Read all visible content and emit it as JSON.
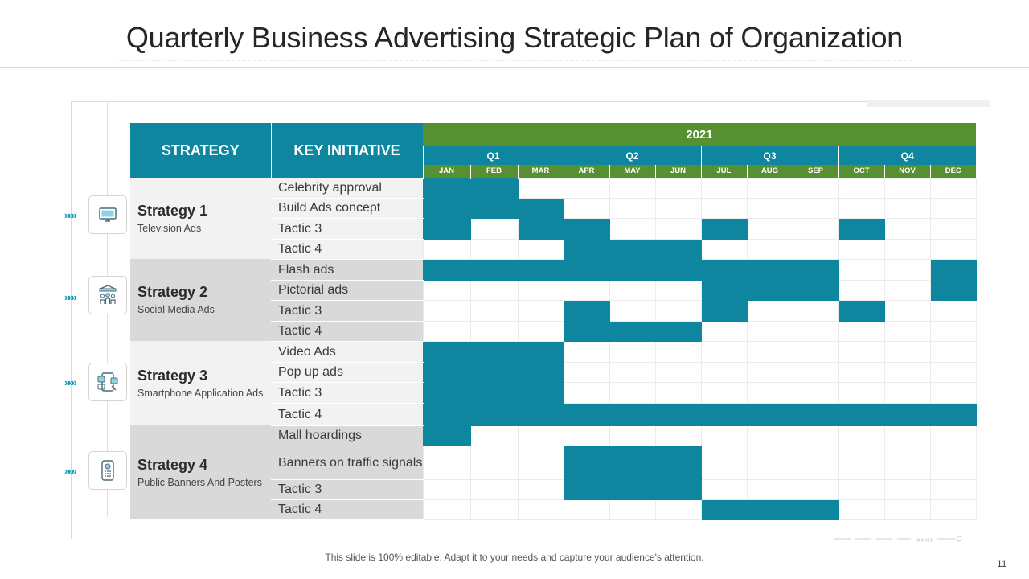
{
  "title": "Quarterly Business Advertising Strategic Plan of Organization",
  "table": {
    "strategy_header": "STRATEGY",
    "initiative_header": "KEY INITIATIVE",
    "year": "2021",
    "quarters": [
      "Q1",
      "Q2",
      "Q3",
      "Q4"
    ],
    "months": [
      "JAN",
      "FEB",
      "MAR",
      "APR",
      "MAY",
      "JUN",
      "JUL",
      "AUG",
      "SEP",
      "OCT",
      "NOV",
      "DEC"
    ]
  },
  "strategies": [
    {
      "name": "Strategy 1",
      "subtitle": "Television  Ads",
      "icon": "television-icon",
      "initiatives": [
        {
          "label": "Celebrity approval",
          "active": [
            0,
            1
          ]
        },
        {
          "label": "Build Ads concept",
          "active": [
            0,
            1,
            2
          ]
        },
        {
          "label": "Tactic 3",
          "active": [
            0,
            2,
            3,
            6,
            9
          ]
        },
        {
          "label": "Tactic 4",
          "active": [
            3,
            4,
            5
          ]
        }
      ]
    },
    {
      "name": "Strategy 2",
      "subtitle": "Social Media Ads",
      "icon": "social-media-icon",
      "initiatives": [
        {
          "label": "Flash ads",
          "active": [
            0,
            1,
            2,
            3,
            4,
            5,
            6,
            7,
            8,
            11
          ]
        },
        {
          "label": "Pictorial ads",
          "active": [
            6,
            7,
            8,
            11
          ]
        },
        {
          "label": "Tactic 3",
          "active": [
            3,
            6,
            9
          ]
        },
        {
          "label": "Tactic 4",
          "active": [
            3,
            4,
            5
          ]
        }
      ]
    },
    {
      "name": "Strategy 3",
      "subtitle": "Smartphone Application Ads",
      "icon": "smartphone-app-icon",
      "initiatives": [
        {
          "label": "Video Ads",
          "active": [
            0,
            1,
            2
          ]
        },
        {
          "label": "Pop up ads",
          "active": [
            0,
            1,
            2
          ]
        },
        {
          "label": "Tactic 3",
          "active": [
            0,
            1,
            2
          ]
        },
        {
          "label": "Tactic 4",
          "active": [
            0,
            1,
            2,
            3,
            4,
            5,
            6,
            7,
            8,
            9,
            10,
            11
          ]
        }
      ]
    },
    {
      "name": "Strategy 4",
      "subtitle": "Public Banners And Posters",
      "icon": "mobile-phone-icon",
      "initiatives": [
        {
          "label": "Mall hoardings",
          "active": [
            0
          ]
        },
        {
          "label": "Banners on traffic signals",
          "active": [
            3,
            4,
            5
          ]
        },
        {
          "label": "Tactic 3",
          "active": [
            3,
            4,
            5
          ]
        },
        {
          "label": "Tactic 4",
          "active": [
            6,
            7,
            8
          ]
        }
      ]
    }
  ],
  "footer": "This slide is 100% editable. Adapt it to your needs and capture your audience's attention.",
  "page_number": "11",
  "colors": {
    "teal": "#0e86a0",
    "green": "#579032",
    "chevron": "#0e9bbd"
  }
}
